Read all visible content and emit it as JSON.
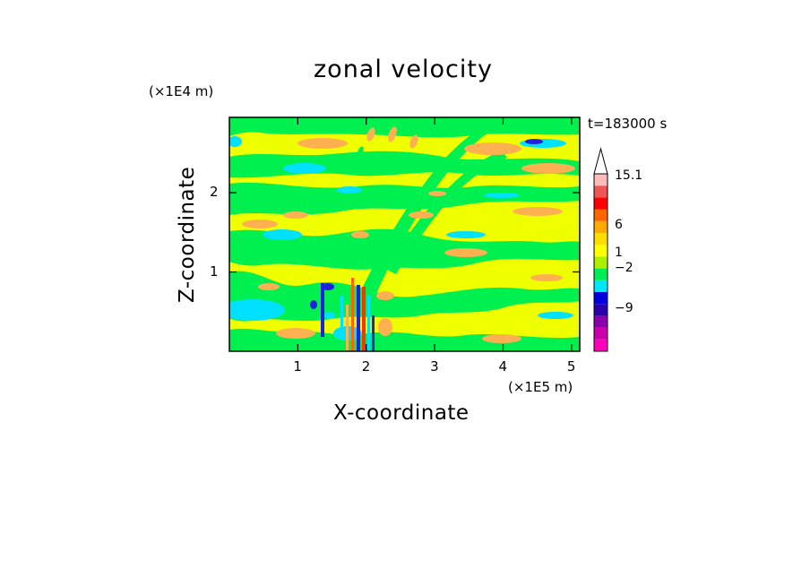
{
  "chart_data": {
    "type": "heatmap",
    "title": "zonal velocity",
    "xlabel": "X-coordinate",
    "ylabel": "Z-coordinate",
    "x_unit_label": "(×1E5 m)",
    "y_unit_label": "(×1E4 m)",
    "time_label": "t=183000 s",
    "xlim": [
      0,
      5.12
    ],
    "ylim": [
      0,
      2.95
    ],
    "x_ticks": [
      1,
      2,
      3,
      4,
      5
    ],
    "x_tick_labels": [
      "1",
      "2",
      "3",
      "4",
      "5"
    ],
    "y_ticks": [
      1,
      2
    ],
    "y_tick_labels": [
      "1",
      "2"
    ],
    "grid": false,
    "colorbar": {
      "labels": [
        {
          "value": 15.1,
          "text": "15.1"
        },
        {
          "value": 6,
          "text": "6"
        },
        {
          "value": 1,
          "text": "1"
        },
        {
          "value": -2,
          "text": "−2"
        },
        {
          "value": -9,
          "text": "−9"
        }
      ],
      "colors": [
        "#ff00bb",
        "#cc00aa",
        "#8a00aa",
        "#2a00aa",
        "#0000dd",
        "#00e8ff",
        "#00ee55",
        "#aaf000",
        "#ffff00",
        "#ffdd00",
        "#ffaa00",
        "#ff6600",
        "#ff0000",
        "#ee5555",
        "#ffbbbb"
      ],
      "extend": "max"
    },
    "field_colors": {
      "yellow": "#f0ff00",
      "green": "#00f050",
      "orange": "#ffb050",
      "cyan": "#00e0ff",
      "blue": "#2020dd",
      "red": "#ff3300"
    }
  }
}
